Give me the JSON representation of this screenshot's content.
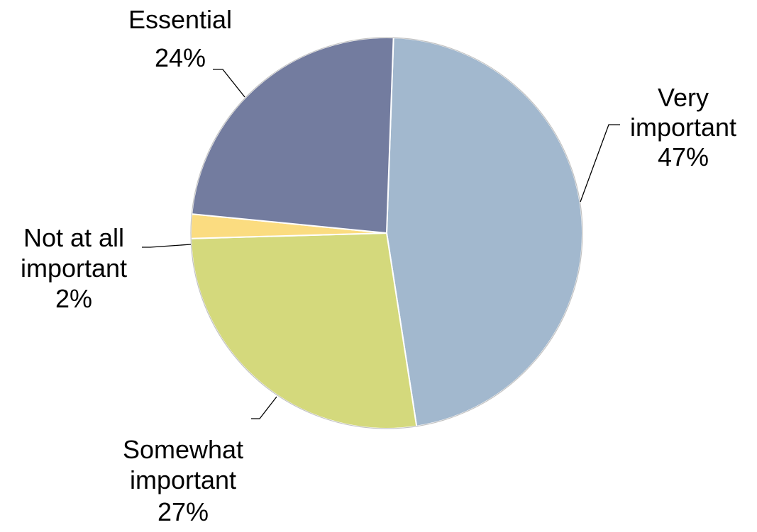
{
  "chart_data": {
    "type": "pie",
    "title": "",
    "start_angle_deg": 88,
    "direction": "clockwise",
    "slices": [
      {
        "name": "Very important",
        "label_lines": [
          "Very",
          "important"
        ],
        "percent_label": "47%",
        "value": 47,
        "color": "#A2B8CE"
      },
      {
        "name": "Somewhat important",
        "label_lines": [
          "Somewhat",
          "important"
        ],
        "percent_label": "27%",
        "value": 27,
        "color": "#D4D97C"
      },
      {
        "name": "Not at all important",
        "label_lines": [
          "Not at all",
          "important"
        ],
        "percent_label": "2%",
        "value": 2,
        "color": "#FBDC80"
      },
      {
        "name": "Essential",
        "label_lines": [
          "Essential"
        ],
        "percent_label": "24%",
        "value": 24,
        "color": "#737C9F"
      }
    ]
  }
}
